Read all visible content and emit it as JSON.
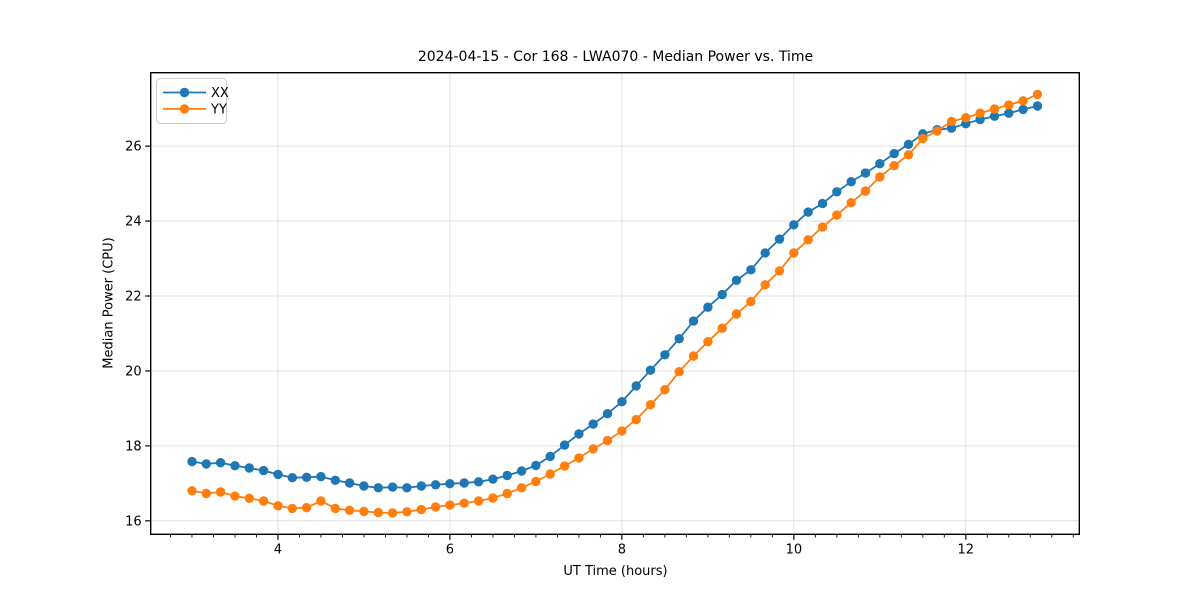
{
  "chart_data": {
    "type": "line",
    "title": "2024-04-15 - Cor 168 - LWA070 - Median Power vs. Time",
    "xlabel": "UT Time (hours)",
    "ylabel": "Median Power (CPU)",
    "xlim": [
      2.52,
      13.32
    ],
    "ylim": [
      15.64,
      27.96
    ],
    "xticks": [
      4,
      6,
      8,
      10,
      12
    ],
    "yticks": [
      16,
      18,
      20,
      22,
      24,
      26
    ],
    "x_minor_step": 0.25,
    "grid": true,
    "grid_color": "#e0e0e0",
    "legend": {
      "position": "upper left"
    },
    "x": [
      3.0,
      3.1667,
      3.3333,
      3.5,
      3.6667,
      3.8333,
      4.0,
      4.1667,
      4.3333,
      4.5,
      4.6667,
      4.8333,
      5.0,
      5.1667,
      5.3333,
      5.5,
      5.6667,
      5.8333,
      6.0,
      6.1667,
      6.3333,
      6.5,
      6.6667,
      6.8333,
      7.0,
      7.1667,
      7.3333,
      7.5,
      7.6667,
      7.8333,
      8.0,
      8.1667,
      8.3333,
      8.5,
      8.6667,
      8.8333,
      9.0,
      9.1667,
      9.3333,
      9.5,
      9.6667,
      9.8333,
      10.0,
      10.1667,
      10.3333,
      10.5,
      10.6667,
      10.8333,
      11.0,
      11.1667,
      11.3333,
      11.5,
      11.6667,
      11.8333,
      12.0,
      12.1667,
      12.3333,
      12.5,
      12.6667,
      12.8333
    ],
    "series": [
      {
        "name": "XX",
        "color": "#1f77b4",
        "marker": "circle",
        "values": [
          17.58,
          17.52,
          17.55,
          17.47,
          17.41,
          17.34,
          17.24,
          17.15,
          17.16,
          17.18,
          17.08,
          17.01,
          16.93,
          16.88,
          16.9,
          16.88,
          16.93,
          16.96,
          16.99,
          17.01,
          17.04,
          17.11,
          17.21,
          17.33,
          17.48,
          17.72,
          18.02,
          18.32,
          18.58,
          18.86,
          19.18,
          19.6,
          20.02,
          20.43,
          20.86,
          21.33,
          21.7,
          22.04,
          22.42,
          22.7,
          23.15,
          23.52,
          23.9,
          24.24,
          24.47,
          24.78,
          25.05,
          25.28,
          25.53,
          25.8,
          26.05,
          26.33,
          26.44,
          26.48,
          26.6,
          26.71,
          26.8,
          26.88,
          26.98,
          27.07
        ]
      },
      {
        "name": "YY",
        "color": "#ff7f0e",
        "marker": "circle",
        "values": [
          16.8,
          16.73,
          16.77,
          16.66,
          16.6,
          16.53,
          16.4,
          16.33,
          16.35,
          16.53,
          16.33,
          16.28,
          16.25,
          16.22,
          16.21,
          16.24,
          16.3,
          16.37,
          16.42,
          16.47,
          16.53,
          16.61,
          16.73,
          16.88,
          17.05,
          17.25,
          17.46,
          17.68,
          17.92,
          18.14,
          18.4,
          18.7,
          19.1,
          19.5,
          19.98,
          20.4,
          20.78,
          21.14,
          21.52,
          21.85,
          22.3,
          22.67,
          23.15,
          23.5,
          23.84,
          24.16,
          24.49,
          24.8,
          25.18,
          25.48,
          25.77,
          26.2,
          26.4,
          26.66,
          26.76,
          26.88,
          26.99,
          27.1,
          27.21,
          27.38
        ]
      }
    ]
  }
}
